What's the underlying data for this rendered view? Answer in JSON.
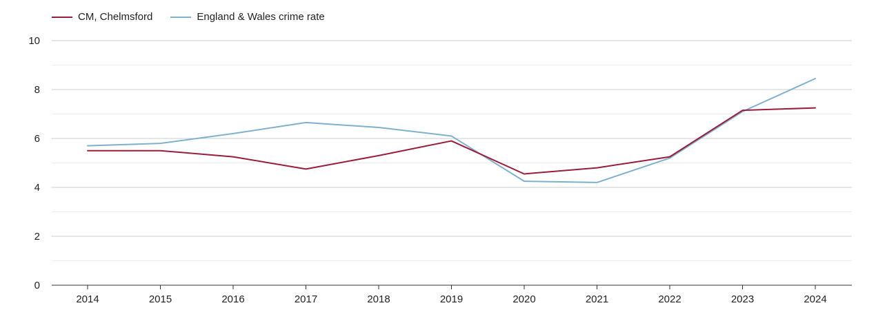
{
  "chart_data": {
    "type": "line",
    "title": "",
    "xlabel": "",
    "ylabel": "",
    "categories": [
      "2014",
      "2015",
      "2016",
      "2017",
      "2018",
      "2019",
      "2020",
      "2021",
      "2022",
      "2023",
      "2024"
    ],
    "ylim": [
      0,
      10
    ],
    "yticks": [
      0,
      2,
      4,
      6,
      8,
      10
    ],
    "grid": true,
    "legend_position": "top-left",
    "series": [
      {
        "name": "CM, Chelmsford",
        "color": "#9b1b3a",
        "values": [
          5.5,
          5.5,
          5.25,
          4.75,
          5.3,
          5.9,
          4.55,
          4.8,
          5.25,
          7.15,
          7.25
        ]
      },
      {
        "name": "England & Wales crime rate",
        "color": "#7fb0d0",
        "values": [
          5.7,
          5.8,
          6.2,
          6.65,
          6.45,
          6.1,
          4.25,
          4.2,
          5.2,
          7.1,
          8.45
        ]
      }
    ]
  }
}
